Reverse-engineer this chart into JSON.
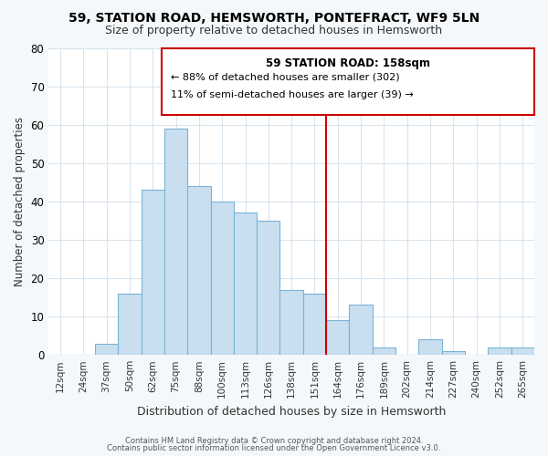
{
  "title": "59, STATION ROAD, HEMSWORTH, PONTEFRACT, WF9 5LN",
  "subtitle": "Size of property relative to detached houses in Hemsworth",
  "xlabel": "Distribution of detached houses by size in Hemsworth",
  "ylabel": "Number of detached properties",
  "bar_labels": [
    "12sqm",
    "24sqm",
    "37sqm",
    "50sqm",
    "62sqm",
    "75sqm",
    "88sqm",
    "100sqm",
    "113sqm",
    "126sqm",
    "138sqm",
    "151sqm",
    "164sqm",
    "176sqm",
    "189sqm",
    "202sqm",
    "214sqm",
    "227sqm",
    "240sqm",
    "252sqm",
    "265sqm"
  ],
  "bar_values": [
    0,
    0,
    3,
    16,
    43,
    59,
    44,
    40,
    37,
    35,
    17,
    16,
    9,
    13,
    2,
    0,
    4,
    1,
    0,
    2,
    2
  ],
  "bar_color": "#c9dff0",
  "bar_edge_color": "#7ab3d4",
  "ylim": [
    0,
    80
  ],
  "yticks": [
    0,
    10,
    20,
    30,
    40,
    50,
    60,
    70,
    80
  ],
  "vline_x_index": 11.5,
  "vline_color": "#cc0000",
  "annotation_title": "59 STATION ROAD: 158sqm",
  "annotation_line1": "← 88% of detached houses are smaller (302)",
  "annotation_line2": "11% of semi-detached houses are larger (39) →",
  "footer1": "Contains HM Land Registry data © Crown copyright and database right 2024.",
  "footer2": "Contains public sector information licensed under the Open Government Licence v3.0.",
  "bg_color": "#f5f8fa",
  "plot_bg_color": "#ffffff",
  "grid_color": "#d8e4ed"
}
